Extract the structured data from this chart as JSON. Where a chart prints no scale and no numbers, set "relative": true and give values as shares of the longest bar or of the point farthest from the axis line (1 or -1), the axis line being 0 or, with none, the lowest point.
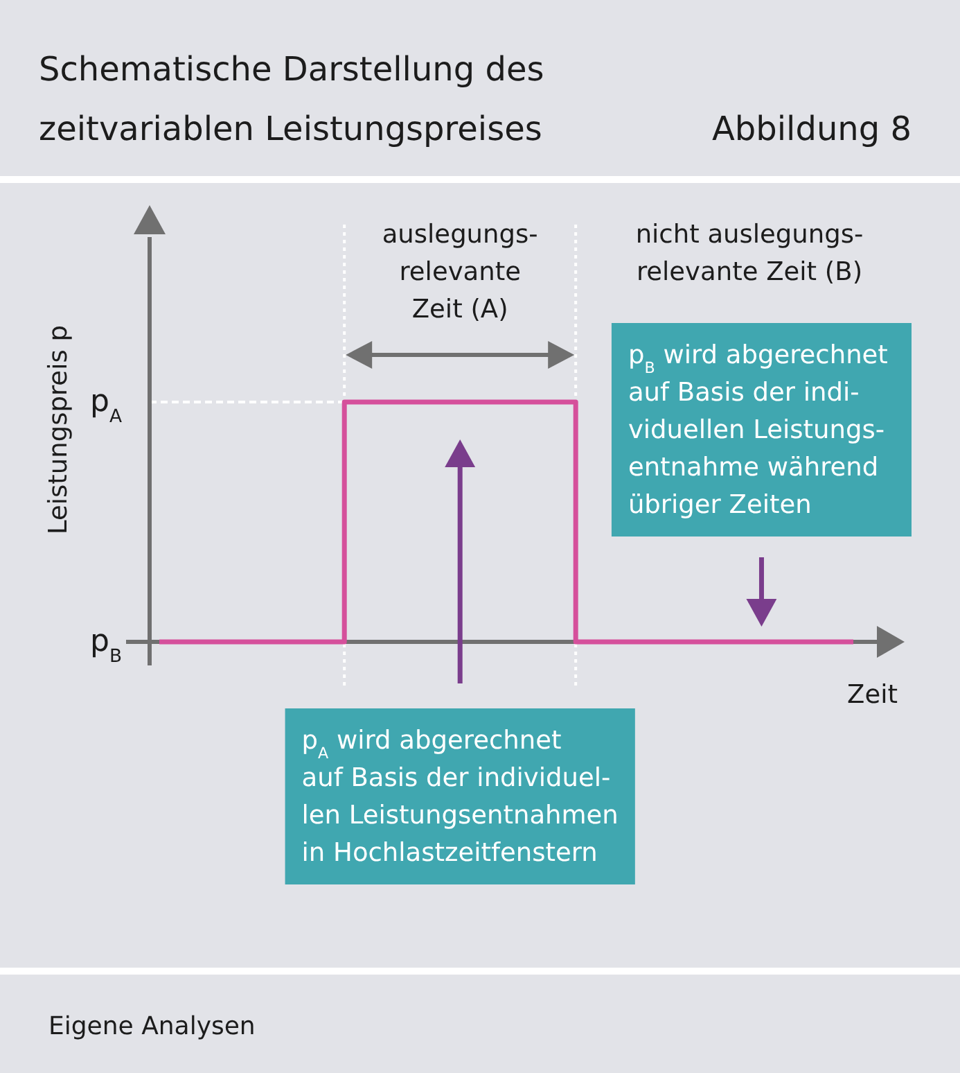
{
  "chart_data": {
    "type": "step",
    "title": "Schematische Darstellung des\nzeitvariablen Leistungspreises",
    "subtitle": "Abbildung 8",
    "xlabel": "Zeit",
    "ylabel": "Leistungspreis p",
    "categories": [
      null,
      null,
      null,
      null,
      null,
      null,
      null,
      null,
      null,
      null,
      null,
      null,
      null,
      null,
      null,
      null
    ],
    "values": [
      0,
      0,
      0,
      0,
      1,
      1,
      1,
      1,
      1,
      0,
      0,
      0,
      0,
      0,
      0,
      0
    ],
    "color": "#d5509b",
    "relative": true,
    "ref_lines": [
      {
        "axis": "y",
        "value": 1,
        "color": "#ffffff",
        "line_style": "dashed"
      }
    ],
    "annotations": [
      "p$_{A}$",
      "p$_{B}$",
      "auslegungs-\nrelevante\nZeit (A)",
      "nicht auslegungs-\nrelevante Zeit (B)",
      "p$_{A}$ wird abgerechnet\nauf Basis der individuel-\nlen Leistungsentnahmen\nin Hochlastzeitfenstern",
      "p$_{B}$ wird abgerechnet\nauf Basis der indi-\nviduellen Leistungs-\nentnahme während\nübriger Zeiten",
      "Eigene Analysen"
    ]
  }
}
